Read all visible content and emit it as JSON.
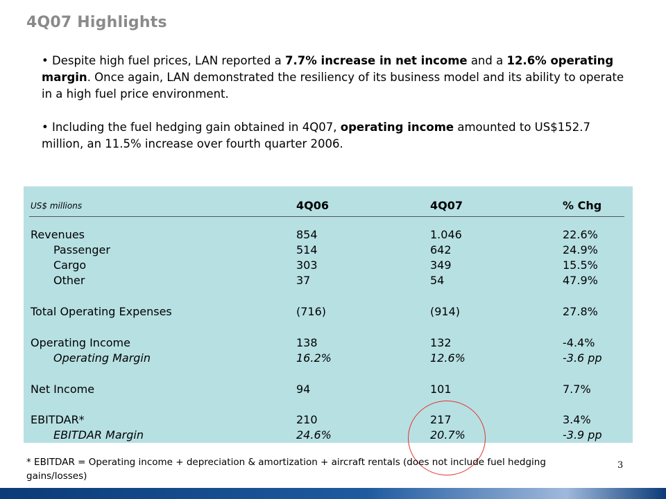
{
  "title": "4Q07 Highlights",
  "bullets": [
    {
      "parts": [
        {
          "text": "Despite high fuel prices, LAN reported a ",
          "bold": false
        },
        {
          "text": "7.7% increase in net income",
          "bold": true
        },
        {
          "text": " and a ",
          "bold": false
        },
        {
          "text": "12.6% operating margin",
          "bold": true
        },
        {
          "text": ". Once again, LAN demonstrated the resiliency of its business model and its ability to operate in a high fuel price environment.",
          "bold": false
        }
      ]
    },
    {
      "parts": [
        {
          "text": "Including the fuel hedging gain obtained in 4Q07, ",
          "bold": false
        },
        {
          "text": "operating income",
          "bold": true
        },
        {
          "text": " amounted to US$152.7 million, an 11.5% increase over fourth quarter 2006.",
          "bold": false
        }
      ]
    }
  ],
  "table": {
    "unit_label": "US$ millions",
    "columns": [
      "4Q06",
      "4Q07",
      "% Chg"
    ],
    "rows": [
      {
        "label": "Revenues",
        "values": [
          "854",
          "1.046",
          "22.6%"
        ]
      },
      {
        "label": "Passenger",
        "values": [
          "514",
          "642",
          "24.9%"
        ]
      },
      {
        "label": "Cargo",
        "values": [
          "303",
          "349",
          "15.5%"
        ]
      },
      {
        "label": "Other",
        "values": [
          "37",
          "54",
          "47.9%"
        ]
      },
      {
        "label": "Total Operating Expenses",
        "values": [
          "(716)",
          "(914)",
          "27.8%"
        ]
      },
      {
        "label": "Operating Income",
        "values": [
          "138",
          "132",
          "-4.4%"
        ]
      },
      {
        "label": "Operating Margin",
        "values": [
          "16.2%",
          "12.6%",
          "-3.6 pp"
        ]
      },
      {
        "label": "Net Income",
        "values": [
          "94",
          "101",
          "7.7%"
        ]
      },
      {
        "label": "EBITDAR*",
        "values": [
          "210",
          "217",
          "3.4%"
        ]
      },
      {
        "label": "EBITDAR Margin",
        "values": [
          "24.6%",
          "20.7%",
          "-3.9 pp"
        ]
      }
    ]
  },
  "footnote": "* EBITDAR = Operating income + depreciation & amortization + aircraft rentals (does not include fuel hedging gains/losses)",
  "page_number": "3",
  "colors": {
    "title": "#8a8a8a",
    "table_background": "#b7e0e3",
    "highlight_circle": "#e3332b",
    "bottom_bar": "#0b3b78"
  }
}
